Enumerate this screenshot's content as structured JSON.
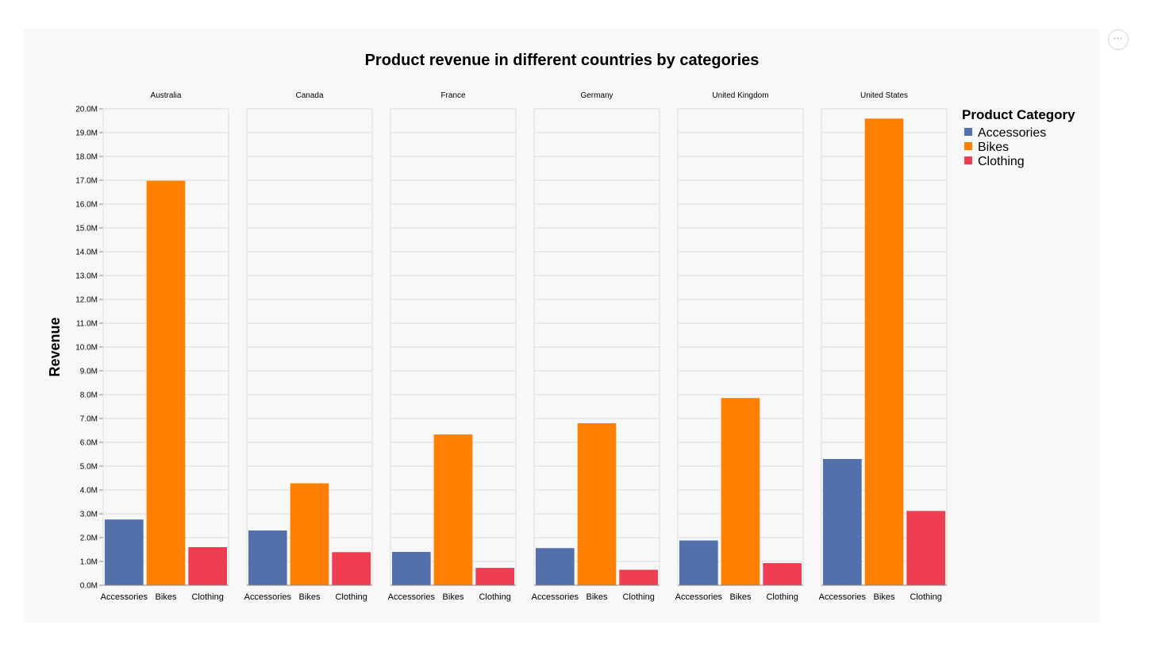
{
  "menu": {
    "icon": "more-horizontal-icon",
    "label": "⋯"
  },
  "chart_data": {
    "type": "bar",
    "title": "Product revenue in different countries by categories",
    "ylabel": "Revenue",
    "xlabel": "",
    "ylim": [
      0,
      20000000
    ],
    "y_ticks": [
      "0.0M",
      "1.0M",
      "2.0M",
      "3.0M",
      "4.0M",
      "5.0M",
      "6.0M",
      "7.0M",
      "8.0M",
      "9.0M",
      "10.0M",
      "11.0M",
      "12.0M",
      "13.0M",
      "14.0M",
      "15.0M",
      "16.0M",
      "17.0M",
      "18.0M",
      "19.0M",
      "20.0M"
    ],
    "grid": true,
    "legend_position": "right",
    "legend_title": "Product Category",
    "categories": [
      "Accessories",
      "Bikes",
      "Clothing"
    ],
    "colors": [
      "#5470ab",
      "#ff8000",
      "#ef3d52"
    ],
    "facets": [
      {
        "name": "Australia",
        "values": [
          2760000,
          16980000,
          1600000
        ]
      },
      {
        "name": "Canada",
        "values": [
          2300000,
          4280000,
          1390000
        ]
      },
      {
        "name": "France",
        "values": [
          1400000,
          6330000,
          730000
        ]
      },
      {
        "name": "Germany",
        "values": [
          1560000,
          6800000,
          650000
        ]
      },
      {
        "name": "United Kingdom",
        "values": [
          1880000,
          7860000,
          930000
        ]
      },
      {
        "name": "United States",
        "values": [
          5300000,
          19590000,
          3120000
        ]
      }
    ]
  }
}
